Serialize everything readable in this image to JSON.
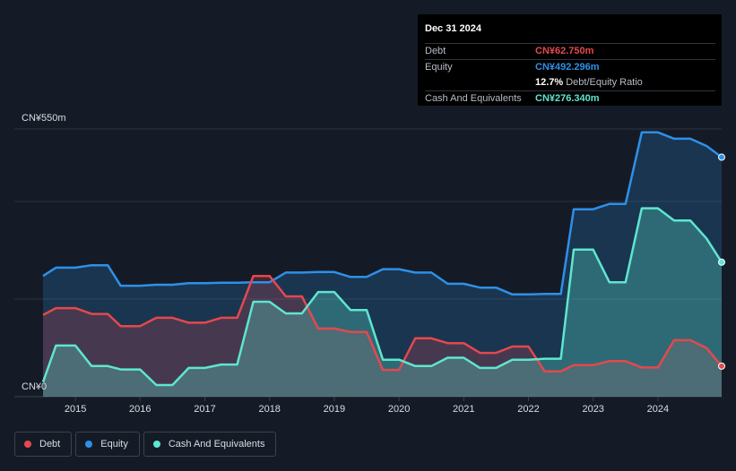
{
  "tooltip": {
    "date": "Dec 31 2024",
    "rows": [
      {
        "label": "Debt",
        "value": "CN¥62.750m",
        "color": "#e5484d"
      },
      {
        "label": "Equity",
        "value": "CN¥492.296m",
        "color": "#2e90e8"
      },
      {
        "label": "",
        "value": "12.7%",
        "extra": "Debt/Equity Ratio",
        "color": "#ffffff"
      },
      {
        "label": "Cash And Equivalents",
        "value": "CN¥276.340m",
        "color": "#5ee6cf"
      }
    ]
  },
  "legend": [
    {
      "label": "Debt",
      "color": "#e5484d"
    },
    {
      "label": "Equity",
      "color": "#2e90e8"
    },
    {
      "label": "Cash And Equivalents",
      "color": "#5ee6cf"
    }
  ],
  "chart_data": {
    "type": "area",
    "ylim": [
      0,
      550
    ],
    "xlim": [
      2014.5,
      2025.0
    ],
    "y_tick_labels": [
      "CN¥550m",
      "CN¥0"
    ],
    "x_tick_labels": [
      "2015",
      "2016",
      "2017",
      "2018",
      "2019",
      "2020",
      "2021",
      "2022",
      "2023",
      "2024"
    ],
    "grid": true,
    "legend_position": "bottom-left",
    "series": [
      {
        "name": "Equity",
        "color": "#2e90e8",
        "x": [
          2014.5,
          2014.7,
          2015.0,
          2015.25,
          2015.5,
          2015.7,
          2016.0,
          2016.25,
          2016.5,
          2016.75,
          2017.0,
          2017.25,
          2017.5,
          2017.75,
          2018.0,
          2018.25,
          2018.5,
          2018.75,
          2019.0,
          2019.25,
          2019.5,
          2019.75,
          2020.0,
          2020.25,
          2020.5,
          2020.75,
          2021.0,
          2021.25,
          2021.5,
          2021.75,
          2022.0,
          2022.25,
          2022.5,
          2022.7,
          2023.0,
          2023.25,
          2023.5,
          2023.75,
          2024.0,
          2024.25,
          2024.5,
          2024.75,
          2025.0
        ],
        "values": [
          248,
          265,
          265,
          270,
          270,
          228,
          228,
          230,
          230,
          233,
          233,
          234,
          234,
          235,
          235,
          255,
          255,
          256,
          256,
          246,
          246,
          262,
          262,
          255,
          255,
          232,
          232,
          224,
          224,
          210,
          210,
          211,
          211,
          385,
          385,
          396,
          396,
          543,
          543,
          530,
          530,
          515,
          492
        ]
      },
      {
        "name": "Debt",
        "color": "#e5484d",
        "x": [
          2014.5,
          2014.7,
          2015.0,
          2015.25,
          2015.5,
          2015.7,
          2016.0,
          2016.25,
          2016.5,
          2016.75,
          2017.0,
          2017.25,
          2017.5,
          2017.75,
          2018.0,
          2018.25,
          2018.5,
          2018.75,
          2019.0,
          2019.25,
          2019.5,
          2019.75,
          2020.0,
          2020.25,
          2020.5,
          2020.75,
          2021.0,
          2021.25,
          2021.5,
          2021.75,
          2022.0,
          2022.25,
          2022.5,
          2022.7,
          2023.0,
          2023.25,
          2023.5,
          2023.75,
          2024.0,
          2024.25,
          2024.5,
          2024.75,
          2025.0
        ],
        "values": [
          168,
          182,
          182,
          170,
          170,
          145,
          145,
          162,
          162,
          152,
          152,
          162,
          162,
          248,
          248,
          206,
          206,
          140,
          140,
          133,
          133,
          55,
          55,
          120,
          120,
          110,
          110,
          90,
          90,
          103,
          103,
          52,
          52,
          65,
          65,
          73,
          73,
          60,
          60,
          116,
          116,
          100,
          62.75
        ]
      },
      {
        "name": "Cash And Equivalents",
        "color": "#5ee6cf",
        "x": [
          2014.5,
          2014.7,
          2015.0,
          2015.25,
          2015.5,
          2015.7,
          2016.0,
          2016.25,
          2016.5,
          2016.75,
          2017.0,
          2017.25,
          2017.5,
          2017.75,
          2018.0,
          2018.25,
          2018.5,
          2018.75,
          2019.0,
          2019.25,
          2019.5,
          2019.75,
          2020.0,
          2020.25,
          2020.5,
          2020.75,
          2021.0,
          2021.25,
          2021.5,
          2021.75,
          2022.0,
          2022.25,
          2022.5,
          2022.7,
          2023.0,
          2023.25,
          2023.5,
          2023.75,
          2024.0,
          2024.25,
          2024.5,
          2024.75,
          2025.0
        ],
        "values": [
          30,
          105,
          105,
          63,
          63,
          56,
          56,
          24,
          24,
          59,
          59,
          66,
          66,
          195,
          195,
          171,
          171,
          215,
          215,
          178,
          178,
          76,
          76,
          63,
          63,
          80,
          80,
          59,
          59,
          76,
          76,
          78,
          78,
          302,
          302,
          235,
          235,
          387,
          387,
          362,
          362,
          325,
          276.34
        ]
      }
    ],
    "tooltip_marker_x": 2025.0
  }
}
